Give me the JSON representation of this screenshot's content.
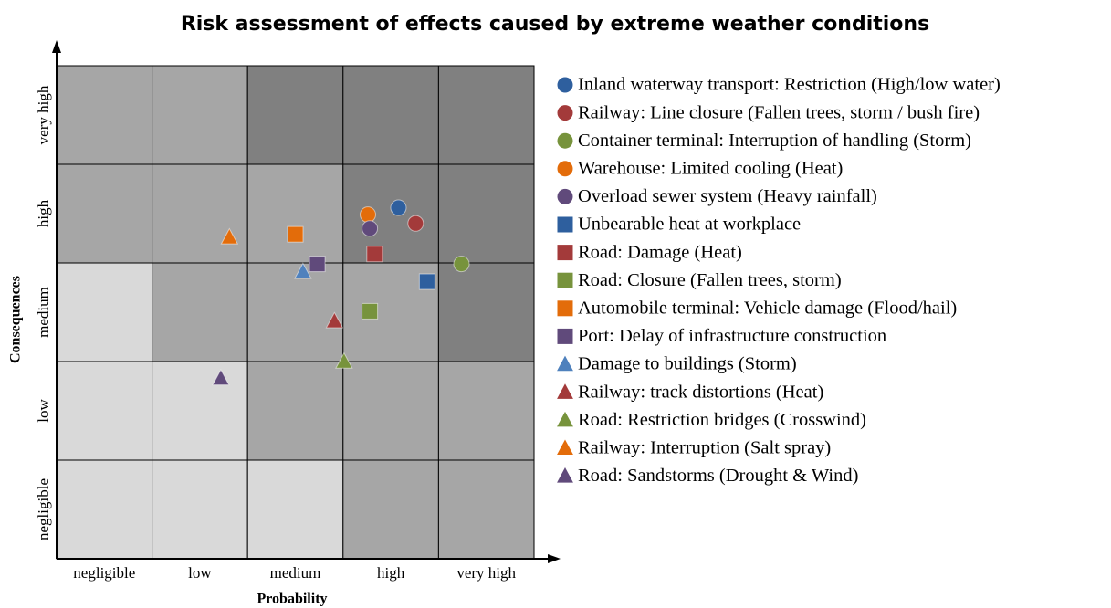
{
  "chart_data": {
    "type": "scatter",
    "title": "Risk assessment of effects caused by extreme weather conditions",
    "x_label": "Probability",
    "y_label": "Consequences",
    "xlim": [
      0,
      5
    ],
    "ylim": [
      0,
      5
    ],
    "xticks": [
      {
        "value": 0.5,
        "label": "negligible"
      },
      {
        "value": 1.5,
        "label": "low"
      },
      {
        "value": 2.5,
        "label": "medium"
      },
      {
        "value": 3.5,
        "label": "high"
      },
      {
        "value": 4.5,
        "label": "very high"
      }
    ],
    "yticks": [
      {
        "value": 0.5,
        "label": "negligible"
      },
      {
        "value": 1.5,
        "label": "low"
      },
      {
        "value": 2.5,
        "label": "medium"
      },
      {
        "value": 3.5,
        "label": "high"
      },
      {
        "value": 4.5,
        "label": "very high"
      }
    ],
    "cell_colors": [
      [
        "#d9d9d9",
        "#d9d9d9",
        "#d9d9d9",
        "#a6a6a6",
        "#a6a6a6"
      ],
      [
        "#d9d9d9",
        "#d9d9d9",
        "#a6a6a6",
        "#a6a6a6",
        "#a6a6a6"
      ],
      [
        "#d9d9d9",
        "#a6a6a6",
        "#a6a6a6",
        "#a6a6a6",
        "#808080"
      ],
      [
        "#a6a6a6",
        "#a6a6a6",
        "#a6a6a6",
        "#808080",
        "#808080"
      ],
      [
        "#a6a6a6",
        "#a6a6a6",
        "#808080",
        "#808080",
        "#808080"
      ]
    ],
    "series": [
      {
        "name": "Inland waterway transport: Restriction (High/low water)",
        "color": "#2e5f9e",
        "marker": "circle",
        "x": [
          3.58
        ],
        "values": [
          3.56
        ]
      },
      {
        "name": "Railway: Line closure (Fallen trees, storm / bush fire)",
        "color": "#a33a3a",
        "marker": "circle",
        "x": [
          3.76
        ],
        "values": [
          3.4
        ]
      },
      {
        "name": "Container terminal: Interruption of handling (Storm)",
        "color": "#77933c",
        "marker": "circle",
        "x": [
          4.24
        ],
        "values": [
          2.99
        ]
      },
      {
        "name": "Warehouse: Limited cooling (Heat)",
        "color": "#e36c0a",
        "marker": "circle",
        "x": [
          3.26
        ],
        "values": [
          3.49
        ]
      },
      {
        "name": "Overload sewer system (Heavy rainfall)",
        "color": "#604a7b",
        "marker": "circle",
        "x": [
          3.28
        ],
        "values": [
          3.35
        ]
      },
      {
        "name": "Unbearable heat at workplace",
        "color": "#2e5f9e",
        "marker": "square",
        "x": [
          3.88
        ],
        "values": [
          2.81
        ]
      },
      {
        "name": "Road: Damage (Heat)",
        "color": "#a33a3a",
        "marker": "square",
        "x": [
          3.33
        ],
        "values": [
          3.09
        ]
      },
      {
        "name": "Road: Closure (Fallen trees, storm)",
        "color": "#77933c",
        "marker": "square",
        "x": [
          3.28
        ],
        "values": [
          2.51
        ]
      },
      {
        "name": "Automobile terminal: Vehicle damage (Flood/hail)",
        "color": "#e36c0a",
        "marker": "square",
        "x": [
          2.5
        ],
        "values": [
          3.29
        ]
      },
      {
        "name": "Port: Delay of infrastructure construction",
        "color": "#604a7b",
        "marker": "square",
        "x": [
          2.73
        ],
        "values": [
          2.99
        ]
      },
      {
        "name": "Damage to buildings (Storm)",
        "color": "#4f81bd",
        "marker": "triangle",
        "x": [
          2.58
        ],
        "values": [
          2.91
        ]
      },
      {
        "name": "Railway: track distortions (Heat)",
        "color": "#a33a3a",
        "marker": "triangle",
        "x": [
          2.91
        ],
        "values": [
          2.41
        ]
      },
      {
        "name": "Road: Restriction bridges (Crosswind)",
        "color": "#77933c",
        "marker": "triangle",
        "x": [
          3.01
        ],
        "values": [
          2.0
        ]
      },
      {
        "name": "Railway: Interruption (Salt spray)",
        "color": "#e36c0a",
        "marker": "triangle",
        "x": [
          1.81
        ],
        "values": [
          3.26
        ]
      },
      {
        "name": "Road: Sandstorms (Drought & Wind)",
        "color": "#604a7b",
        "marker": "triangle",
        "x": [
          1.72
        ],
        "values": [
          1.83
        ]
      }
    ]
  }
}
